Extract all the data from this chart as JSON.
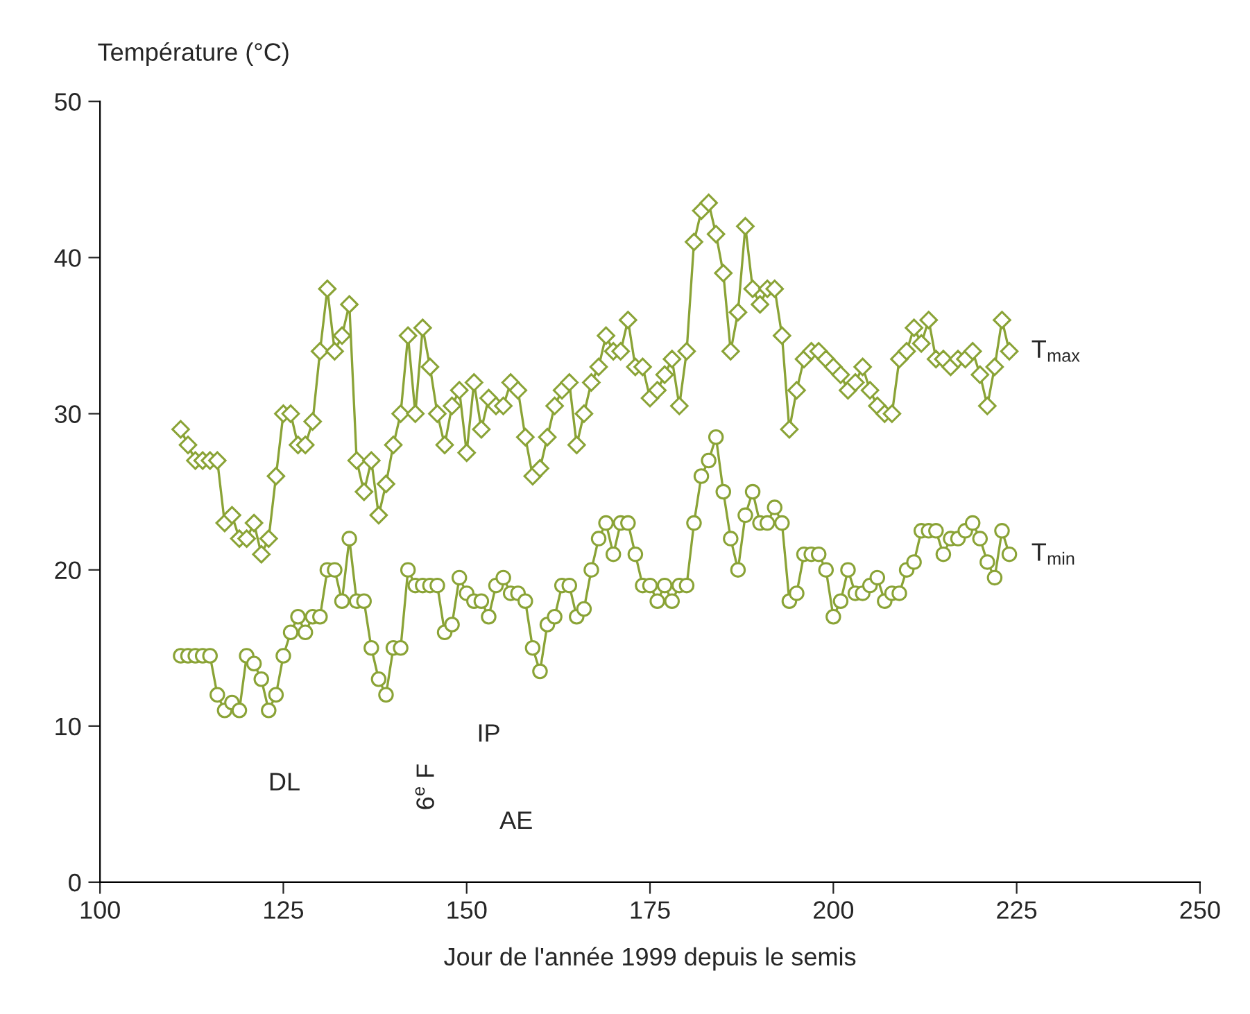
{
  "chart_data": {
    "type": "line",
    "ylabel": "Température (°C)",
    "xlabel": "Jour de l'année 1999 depuis le semis",
    "x": [
      111,
      112,
      113,
      114,
      115,
      116,
      117,
      118,
      119,
      120,
      121,
      122,
      123,
      124,
      125,
      126,
      127,
      128,
      129,
      130,
      131,
      132,
      133,
      134,
      135,
      136,
      137,
      138,
      139,
      140,
      141,
      142,
      143,
      144,
      145,
      146,
      147,
      148,
      149,
      150,
      151,
      152,
      153,
      154,
      155,
      156,
      157,
      158,
      159,
      160,
      161,
      162,
      163,
      164,
      165,
      166,
      167,
      168,
      169,
      170,
      171,
      172,
      173,
      174,
      175,
      176,
      177,
      178,
      179,
      180,
      181,
      182,
      183,
      184,
      185,
      186,
      187,
      188,
      189,
      190,
      191,
      192,
      193,
      194,
      195,
      196,
      197,
      198,
      199,
      200,
      201,
      202,
      203,
      204,
      205,
      206,
      207,
      208,
      209,
      210,
      211,
      212,
      213,
      214,
      215,
      216,
      217,
      218,
      219,
      220,
      221,
      222,
      223,
      224
    ],
    "series": [
      {
        "name": "T$_{max}$",
        "color": "#8aa336",
        "marker": "diamond",
        "values": [
          29,
          28,
          27,
          27,
          27,
          27,
          23,
          23.5,
          22,
          22,
          23,
          21,
          22,
          26,
          30,
          30,
          28,
          28,
          29.5,
          34,
          38,
          34,
          35,
          37,
          27,
          25,
          27,
          23.5,
          25.5,
          28,
          30,
          35,
          30,
          35.5,
          33,
          30,
          28,
          30.5,
          31.5,
          27.5,
          32,
          29,
          31,
          30.5,
          30.5,
          32,
          31.5,
          28.5,
          26,
          26.5,
          28.5,
          30.5,
          31.5,
          32,
          28,
          30,
          32,
          33,
          35,
          34,
          34,
          36,
          33,
          33,
          31,
          31.5,
          32.5,
          33.5,
          30.5,
          34,
          41,
          43,
          43.5,
          41.5,
          39,
          34,
          36.5,
          42,
          38,
          37,
          38,
          38,
          35,
          29,
          31.5,
          33.5,
          34,
          34,
          33.5,
          33,
          32.5,
          31.5,
          32,
          33,
          31.5,
          30.5,
          30,
          30,
          33.5,
          34,
          35.5,
          34.5,
          36,
          33.5,
          33.5,
          33,
          33.5,
          33.5,
          34,
          32.5,
          30.5,
          33,
          36,
          34
        ]
      },
      {
        "name": "T$_{min}$",
        "color": "#8aa336",
        "marker": "circle",
        "values": [
          14.5,
          14.5,
          14.5,
          14.5,
          14.5,
          12,
          11,
          11.5,
          11,
          14.5,
          14,
          13,
          11,
          12,
          14.5,
          16,
          17,
          16,
          17,
          17,
          20,
          20,
          18,
          22,
          18,
          18,
          15,
          13,
          12,
          15,
          15,
          20,
          19,
          19,
          19,
          19,
          16,
          16.5,
          19.5,
          18.5,
          18,
          18,
          17,
          19,
          19.5,
          18.5,
          18.5,
          18,
          15,
          13.5,
          16.5,
          17,
          19,
          19,
          17,
          17.5,
          20,
          22,
          23,
          21,
          23,
          23,
          21,
          19,
          19,
          18,
          19,
          18,
          19,
          19,
          23,
          26,
          27,
          28.5,
          25,
          22,
          20,
          23.5,
          25,
          23,
          23,
          24,
          23,
          18,
          18.5,
          21,
          21,
          21,
          20,
          17,
          18,
          20,
          18.5,
          18.5,
          19,
          19.5,
          18,
          18.5,
          18.5,
          20,
          20.5,
          22.5,
          22.5,
          22.5,
          21,
          22,
          22,
          22.5,
          23,
          22,
          20.5,
          19.5,
          22.5,
          21
        ]
      }
    ],
    "xlim": [
      100,
      250
    ],
    "xticks": [
      100,
      125,
      150,
      175,
      200,
      225,
      250
    ],
    "ylim": [
      0,
      50
    ],
    "yticks": [
      0,
      10,
      20,
      30,
      40,
      50
    ],
    "line_style": "solid",
    "grid": false,
    "legend": false,
    "annotations": [
      "DL",
      "6$^{e}$ F",
      "IP",
      "AE"
    ]
  }
}
